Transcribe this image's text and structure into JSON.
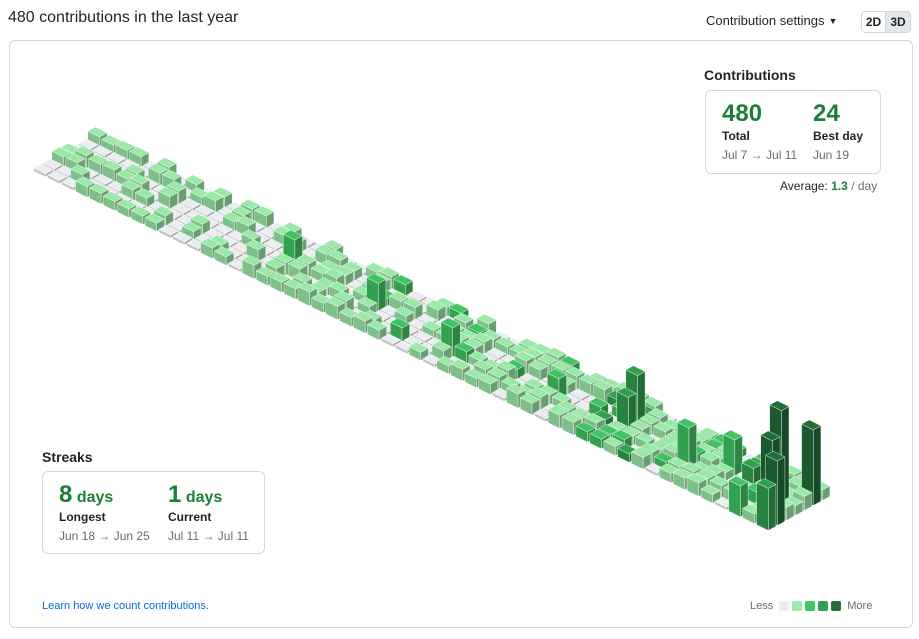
{
  "header": {
    "title": "480 contributions in the last year",
    "settings_label": "Contribution settings",
    "toggle": [
      "2D",
      "3D"
    ]
  },
  "contributions": {
    "title": "Contributions",
    "total": {
      "value": "480",
      "label": "Total",
      "range": "Jul 7 → Jul 11"
    },
    "best": {
      "value": "24",
      "label": "Best day",
      "range": "Jun 19"
    },
    "average": {
      "prefix": "Average:",
      "value": "1.3",
      "unit": "/ day"
    }
  },
  "streaks": {
    "title": "Streaks",
    "longest": {
      "value": "8",
      "unit": "days",
      "label": "Longest",
      "range": "Jun 18 → Jun 25"
    },
    "current": {
      "value": "1",
      "unit": "days",
      "label": "Current",
      "range": "Jul 11 → Jul 11"
    }
  },
  "footer": {
    "learn_link": "Learn how we count contributions.",
    "legend_less": "Less",
    "legend_more": "More"
  },
  "colors": {
    "accent": "#1a7f37",
    "link": "#0969da",
    "levels": [
      "#ebedf0",
      "#9be9a8",
      "#40c463",
      "#30a14e",
      "#216e39"
    ]
  }
}
